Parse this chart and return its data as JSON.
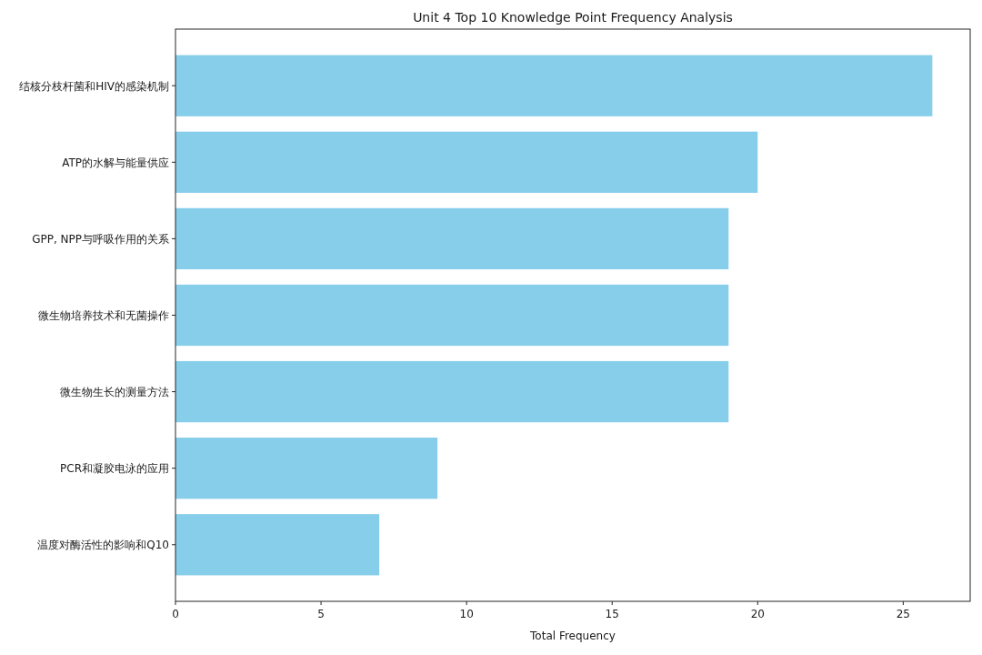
{
  "chart_data": {
    "type": "bar",
    "orientation": "horizontal",
    "title": "Unit 4 Top 10 Knowledge Point Frequency Analysis",
    "xlabel": "Total Frequency",
    "categories": [
      "结核分枝杆菌和HIV的感染机制",
      "ATP的水解与能量供应",
      "GPP, NPP与呼吸作用的关系",
      "微生物培养技术和无菌操作",
      "微生物生长的测量方法",
      "PCR和凝胶电泳的应用",
      "温度对酶活性的影响和Q10"
    ],
    "values": [
      26,
      20,
      19,
      19,
      19,
      9,
      7
    ],
    "color": "#87ceeb",
    "xlim": [
      0,
      27.3
    ],
    "xticks": [
      0,
      5,
      10,
      15,
      20,
      25
    ],
    "grid": false
  }
}
